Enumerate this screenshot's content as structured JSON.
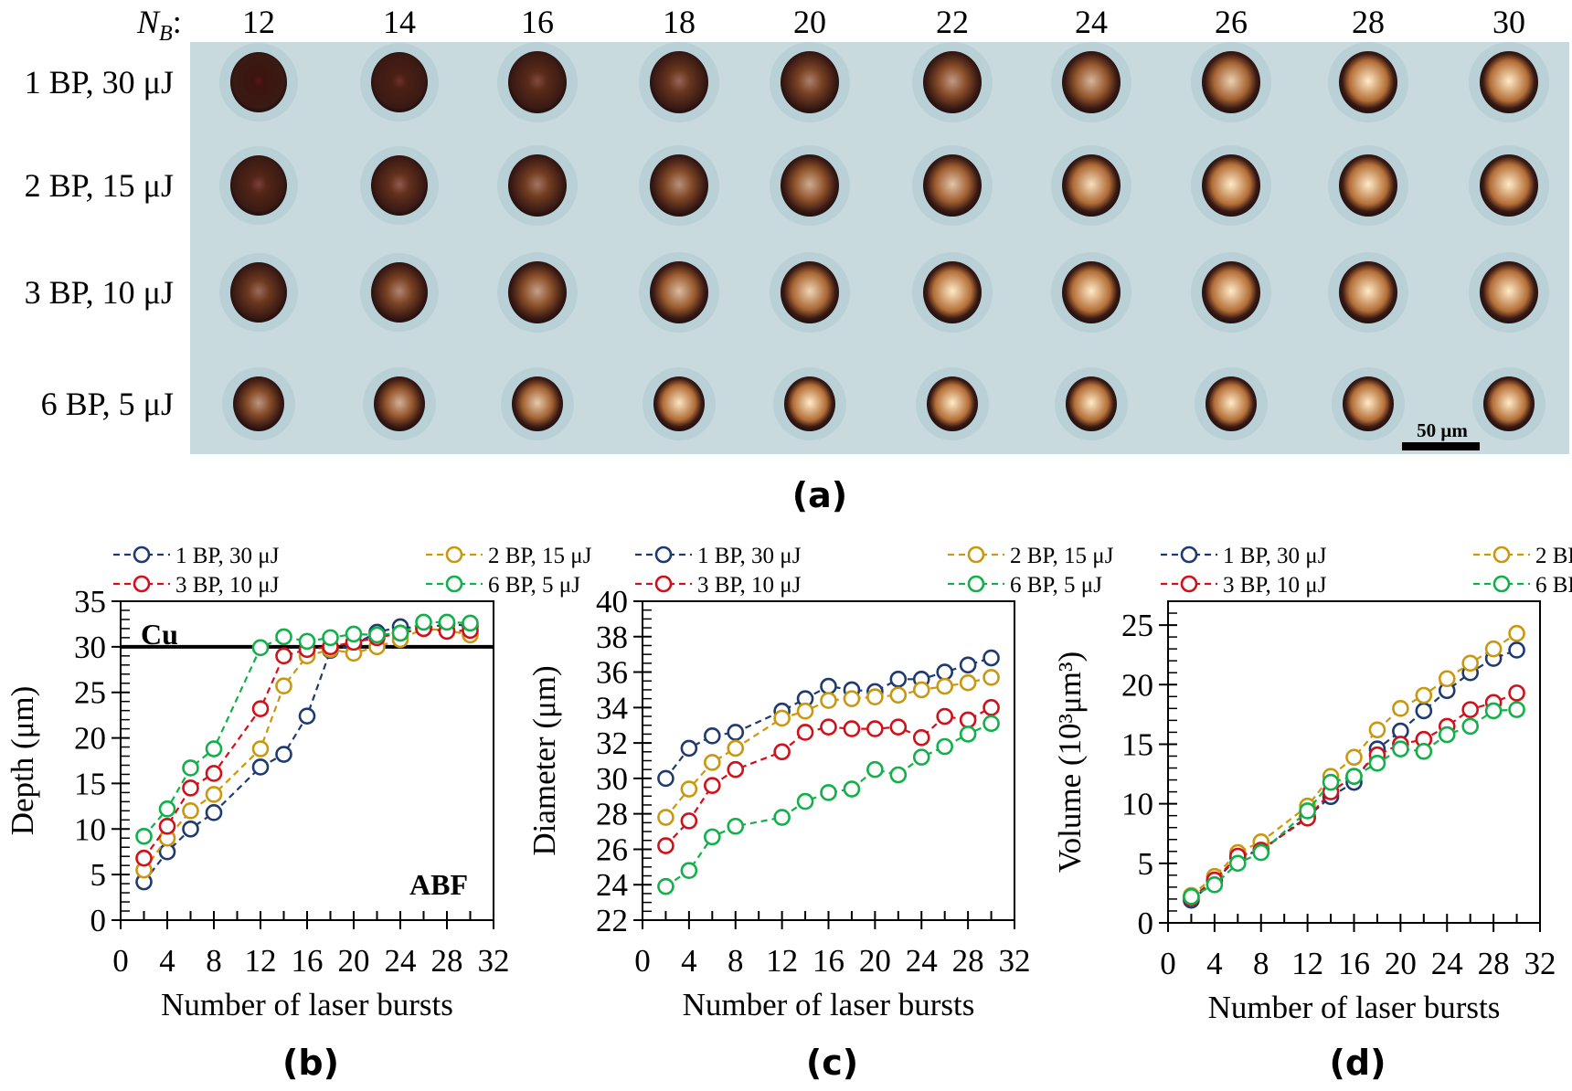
{
  "micrograph": {
    "nb_label": "N",
    "nb_sub": "B",
    "nb_colon": ":",
    "columns": [
      "12",
      "14",
      "16",
      "18",
      "20",
      "22",
      "24",
      "26",
      "28",
      "30"
    ],
    "rows": [
      "1 BP, 30 μJ",
      "2 BP, 15 μJ",
      "3 BP, 10 μJ",
      "6 BP, 5 μJ"
    ],
    "scale_bar": "50 μm",
    "panel_label": "(a)"
  },
  "legend": [
    "1 BP, 30 μJ",
    "2 BP, 15 μJ",
    "3 BP, 10 μJ",
    "6 BP, 5 μJ"
  ],
  "colors": {
    "s1": "#1f3a6e",
    "s2": "#c9980f",
    "s3": "#d0101a",
    "s4": "#12b04a"
  },
  "chart_data": [
    {
      "type": "line",
      "panel_label": "(b)",
      "xlabel": "Number of laser bursts",
      "ylabel": "Depth (μm)",
      "xlim": [
        0,
        32
      ],
      "ylim": [
        0,
        35
      ],
      "xticks": [
        0,
        4,
        8,
        12,
        16,
        20,
        24,
        28,
        32
      ],
      "yticks": [
        0,
        5,
        10,
        15,
        20,
        25,
        30,
        35
      ],
      "annotations": [
        {
          "text": "Cu"
        },
        {
          "text": "ABF"
        }
      ],
      "reference_line": {
        "y": 30
      },
      "legend_placement": "top",
      "x": [
        2,
        4,
        6,
        8,
        12,
        14,
        16,
        18,
        20,
        22,
        24,
        26,
        28,
        30
      ],
      "series": [
        {
          "name": "1 BP, 30 μJ",
          "values": [
            4.2,
            7.5,
            10.0,
            11.8,
            16.8,
            18.2,
            22.4,
            29.6,
            30.2,
            31.6,
            32.2,
            32.0,
            32.5,
            32.3
          ]
        },
        {
          "name": "2 BP, 15 μJ",
          "values": [
            5.5,
            9.0,
            12.0,
            13.8,
            18.8,
            25.7,
            29.0,
            29.7,
            29.3,
            30.0,
            30.8,
            32.0,
            31.8,
            31.3
          ]
        },
        {
          "name": "3 BP, 10 μJ",
          "values": [
            6.8,
            10.3,
            14.5,
            16.1,
            23.2,
            29.0,
            29.7,
            30.0,
            30.5,
            31.0,
            31.5,
            32.0,
            31.7,
            31.8
          ]
        },
        {
          "name": "6 BP, 5 μJ",
          "values": [
            9.2,
            12.2,
            16.7,
            18.8,
            29.9,
            31.1,
            30.6,
            31.0,
            31.4,
            31.3,
            31.5,
            32.7,
            32.7,
            32.6
          ]
        }
      ]
    },
    {
      "type": "line",
      "panel_label": "(c)",
      "xlabel": "Number of laser bursts",
      "ylabel": "Diameter (μm)",
      "xlim": [
        0,
        32
      ],
      "ylim": [
        22,
        40
      ],
      "xticks": [
        0,
        4,
        8,
        12,
        16,
        20,
        24,
        28,
        32
      ],
      "yticks": [
        22,
        24,
        26,
        28,
        30,
        32,
        34,
        36,
        38,
        40
      ],
      "legend_placement": "top",
      "x": [
        2,
        4,
        6,
        8,
        12,
        14,
        16,
        18,
        20,
        22,
        24,
        26,
        28,
        30
      ],
      "series": [
        {
          "name": "1 BP, 30 μJ",
          "values": [
            30.0,
            31.7,
            32.4,
            32.6,
            33.8,
            34.5,
            35.2,
            35.0,
            34.9,
            35.6,
            35.6,
            36.0,
            36.4,
            36.8
          ]
        },
        {
          "name": "2 BP, 15 μJ",
          "values": [
            27.8,
            29.4,
            30.9,
            31.7,
            33.4,
            33.8,
            34.4,
            34.5,
            34.6,
            34.7,
            35.0,
            35.2,
            35.4,
            35.7
          ]
        },
        {
          "name": "3 BP, 10 μJ",
          "values": [
            26.2,
            27.6,
            29.6,
            30.5,
            31.5,
            32.6,
            32.9,
            32.8,
            32.8,
            32.9,
            32.3,
            33.5,
            33.3,
            34.0
          ]
        },
        {
          "name": "6 BP, 5 μJ",
          "values": [
            23.9,
            24.8,
            26.7,
            27.3,
            27.8,
            28.7,
            29.2,
            29.4,
            30.5,
            30.2,
            31.2,
            31.8,
            32.5,
            33.1
          ]
        }
      ]
    },
    {
      "type": "line",
      "panel_label": "(d)",
      "xlabel": "Number of laser bursts",
      "ylabel": "Volume (10³μm³)",
      "xlim": [
        0,
        32
      ],
      "ylim": [
        0,
        27
      ],
      "xticks": [
        0,
        4,
        8,
        12,
        16,
        20,
        24,
        28,
        32
      ],
      "yticks": [
        0,
        5,
        10,
        15,
        20,
        25
      ],
      "legend_placement": "top",
      "x": [
        2,
        4,
        6,
        8,
        12,
        14,
        16,
        18,
        20,
        22,
        24,
        26,
        28,
        30
      ],
      "series": [
        {
          "name": "1 BP, 30 μJ",
          "values": [
            1.9,
            3.5,
            5.5,
            6.1,
            8.9,
            10.6,
            11.8,
            14.6,
            16.1,
            17.8,
            19.5,
            21.0,
            22.2,
            22.9
          ]
        },
        {
          "name": "2 BP, 15 μJ",
          "values": [
            2.3,
            3.9,
            5.9,
            6.8,
            9.8,
            12.3,
            13.9,
            16.2,
            18.0,
            19.1,
            20.5,
            21.8,
            23.0,
            24.3
          ]
        },
        {
          "name": "3 BP, 10 μJ",
          "values": [
            2.1,
            3.6,
            5.6,
            6.1,
            8.8,
            11.0,
            12.3,
            14.1,
            15.0,
            15.4,
            16.5,
            17.9,
            18.5,
            19.3
          ]
        },
        {
          "name": "6 BP, 5 μJ",
          "values": [
            2.2,
            3.2,
            5.0,
            5.9,
            9.4,
            11.8,
            12.3,
            13.4,
            14.6,
            14.4,
            15.8,
            16.5,
            17.8,
            17.9
          ]
        }
      ]
    }
  ]
}
